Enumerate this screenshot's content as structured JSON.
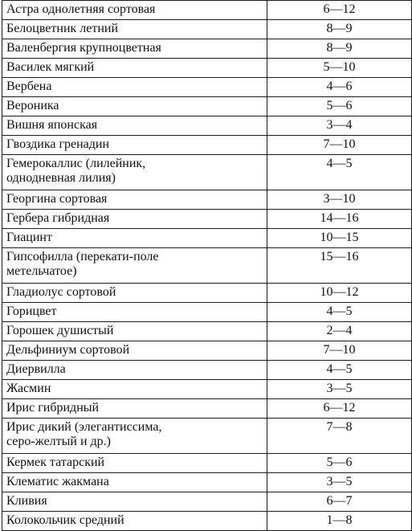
{
  "table": {
    "rows": [
      {
        "name": "Астра однолетняя сортовая",
        "days": "6—12"
      },
      {
        "name": "Белоцветник летний",
        "days": "8—9"
      },
      {
        "name": "Валенбергия крупноцветная",
        "days": "8—9"
      },
      {
        "name": "Василек мягкий",
        "days": "5—10"
      },
      {
        "name": "Вербена",
        "days": "4—6"
      },
      {
        "name": "Вероника",
        "days": "5—6"
      },
      {
        "name": "Вишня японская",
        "days": "3—4"
      },
      {
        "name": "Гвоздика гренадин",
        "days": "7—10"
      },
      {
        "name": "Гемерокаллис (лилейник,\nоднодневная лилия)",
        "days": "4—5"
      },
      {
        "name": "Георгина сортовая",
        "days": "3—10"
      },
      {
        "name": "Гербера гибридная",
        "days": "14—16"
      },
      {
        "name": "Гиацинт",
        "days": "10—15"
      },
      {
        "name": "Гипсофилла (перекати-поле\nметельчатое)",
        "days": "15—16"
      },
      {
        "name": "Гладиолус сортовой",
        "days": "10—12"
      },
      {
        "name": "Горицвет",
        "days": "4—5"
      },
      {
        "name": "Горошек душистый",
        "days": "2—4"
      },
      {
        "name": "Дельфиниум сортовой",
        "days": "7—10"
      },
      {
        "name": "Диервилла",
        "days": "4—5"
      },
      {
        "name": "Жасмин",
        "days": "3—5"
      },
      {
        "name": "Ирис гибридный",
        "days": "6—12"
      },
      {
        "name": "Ирис дикий (элегантиссима,\nсеро-желтый и др.)",
        "days": "7—8"
      },
      {
        "name": "Кермек татарский",
        "days": "5—6"
      },
      {
        "name": "Клематис жакмана",
        "days": "3—5"
      },
      {
        "name": "Кливия",
        "days": "6—7"
      },
      {
        "name": "Колокольчик средний",
        "days": "1—8"
      }
    ]
  }
}
